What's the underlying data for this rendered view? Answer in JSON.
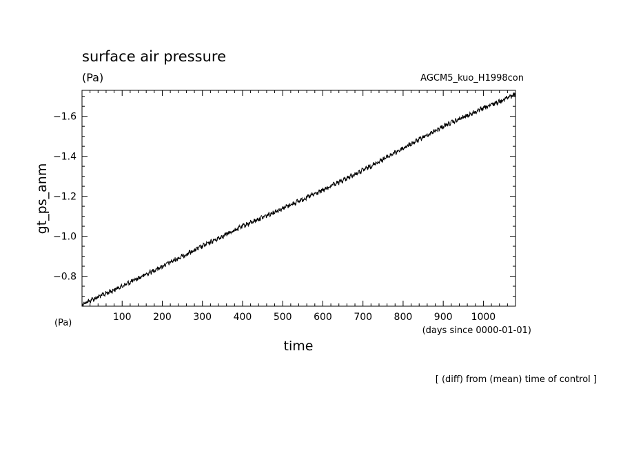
{
  "chart_data": {
    "type": "line",
    "title": "surface air pressure",
    "units": "(Pa)",
    "experiment": "AGCM5_kuo_H1998con",
    "ylabel": "gt_ps_anm",
    "xlabel": "time",
    "x_units_left": "(Pa)",
    "x_units_right": "(days since 0000-01-01)",
    "footnote": "[ (diff) from (mean) time of control ]",
    "xlim": [
      0,
      1080
    ],
    "ylim": [
      -0.65,
      -1.73
    ],
    "x_ticks": [
      100,
      200,
      300,
      400,
      500,
      600,
      700,
      800,
      900,
      1000
    ],
    "y_ticks": [
      -0.8,
      -1.0,
      -1.2,
      -1.4,
      -1.6
    ],
    "y_tick_labels": [
      "−0.8",
      "−1.0",
      "−1.2",
      "−1.4",
      "−1.6"
    ],
    "grid": false,
    "series": [
      {
        "x": [
          0,
          100,
          200,
          300,
          400,
          500,
          600,
          700,
          800,
          900,
          1000,
          1080
        ],
        "y": [
          -0.66,
          -0.75,
          -0.85,
          -0.95,
          -1.05,
          -1.14,
          -1.23,
          -1.33,
          -1.44,
          -1.55,
          -1.64,
          -1.71
        ]
      }
    ]
  }
}
